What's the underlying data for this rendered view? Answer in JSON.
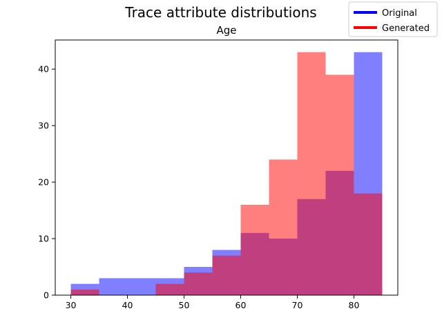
{
  "chart_data": {
    "type": "bar",
    "title": "Trace attribute distributions",
    "subtitle": "Age",
    "xlabel": "",
    "ylabel": "",
    "xlim": [
      27.25,
      87.75
    ],
    "ylim": [
      0,
      45.15
    ],
    "xticks": [
      30,
      40,
      50,
      60,
      70,
      80
    ],
    "yticks": [
      0,
      10,
      20,
      30,
      40
    ],
    "grid": false,
    "legend_position": "top-right",
    "series": [
      {
        "name": "Original",
        "color": "#0000ff",
        "alpha": 0.5,
        "bins": [
          {
            "x0": 30,
            "x1": 35,
            "value": 2
          },
          {
            "x0": 35,
            "x1": 40,
            "value": 3
          },
          {
            "x0": 40,
            "x1": 45,
            "value": 3
          },
          {
            "x0": 45,
            "x1": 50,
            "value": 3
          },
          {
            "x0": 50,
            "x1": 55,
            "value": 5
          },
          {
            "x0": 55,
            "x1": 60,
            "value": 8
          },
          {
            "x0": 60,
            "x1": 65,
            "value": 11
          },
          {
            "x0": 65,
            "x1": 70,
            "value": 10
          },
          {
            "x0": 70,
            "x1": 75,
            "value": 17
          },
          {
            "x0": 75,
            "x1": 80,
            "value": 22
          },
          {
            "x0": 80,
            "x1": 85,
            "value": 43
          }
        ]
      },
      {
        "name": "Generated",
        "color": "#ff0000",
        "alpha": 0.5,
        "bins": [
          {
            "x0": 30,
            "x1": 35,
            "value": 1
          },
          {
            "x0": 35,
            "x1": 40,
            "value": 0
          },
          {
            "x0": 40,
            "x1": 45,
            "value": 0
          },
          {
            "x0": 45,
            "x1": 50,
            "value": 2
          },
          {
            "x0": 50,
            "x1": 55,
            "value": 4
          },
          {
            "x0": 55,
            "x1": 60,
            "value": 7
          },
          {
            "x0": 60,
            "x1": 65,
            "value": 16
          },
          {
            "x0": 65,
            "x1": 70,
            "value": 24
          },
          {
            "x0": 70,
            "x1": 75,
            "value": 43
          },
          {
            "x0": 75,
            "x1": 80,
            "value": 39
          },
          {
            "x0": 80,
            "x1": 85,
            "value": 18
          }
        ]
      }
    ]
  }
}
